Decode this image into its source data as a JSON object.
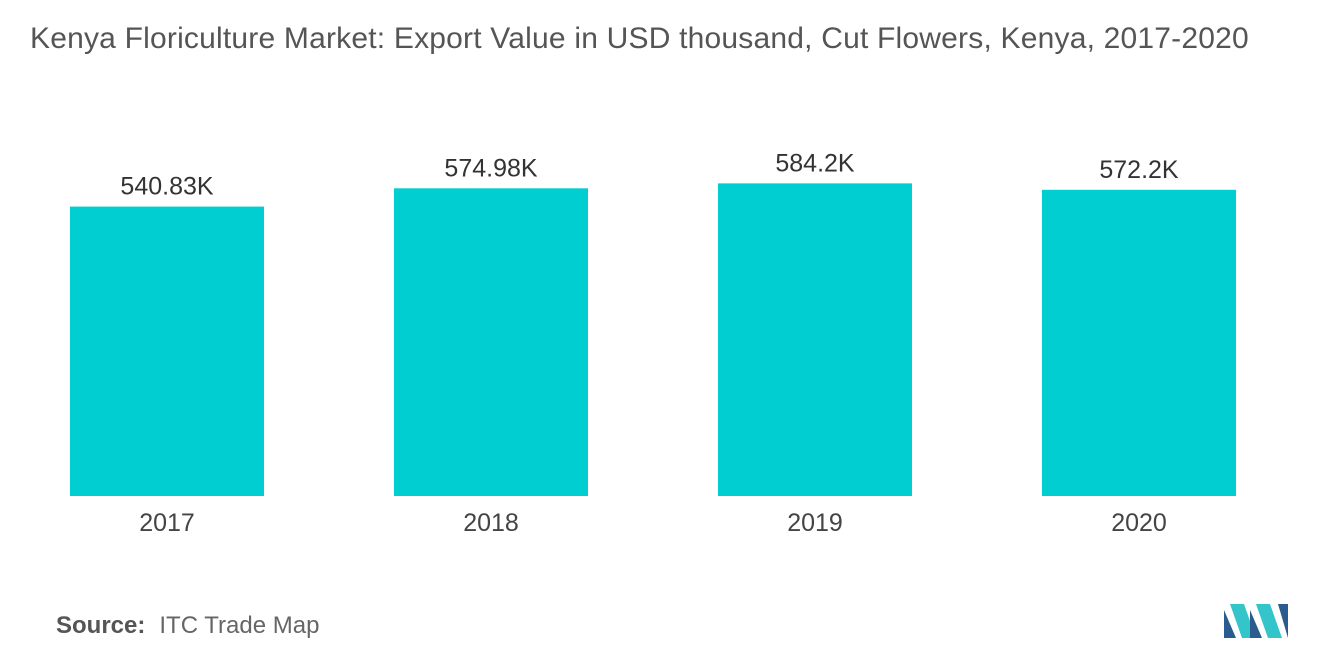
{
  "title": "Kenya Floriculture Market: Export Value in USD thousand, Cut Flowers, Kenya, 2017-2020",
  "source_label": "Source:",
  "source_value": "ITC Trade Map",
  "colors": {
    "bar": "#00CED1",
    "text": "#555555",
    "logo_dark": "#2a5c8f",
    "logo_light": "#33c5c9"
  },
  "logo_icon": "mordor-intelligence-logo",
  "chart_data": {
    "type": "bar",
    "title": "Kenya Floriculture Market: Export Value in USD thousand, Cut Flowers, Kenya, 2017-2020",
    "categories": [
      "2017",
      "2018",
      "2019",
      "2020"
    ],
    "values": [
      540.83,
      574.98,
      584.2,
      572.2
    ],
    "data_labels": [
      "540.83K",
      "574.98K",
      "584.2K",
      "572.2K"
    ],
    "xlabel": "",
    "ylabel": "",
    "ylim": [
      0,
      740
    ],
    "grid": false,
    "legend": "none"
  }
}
